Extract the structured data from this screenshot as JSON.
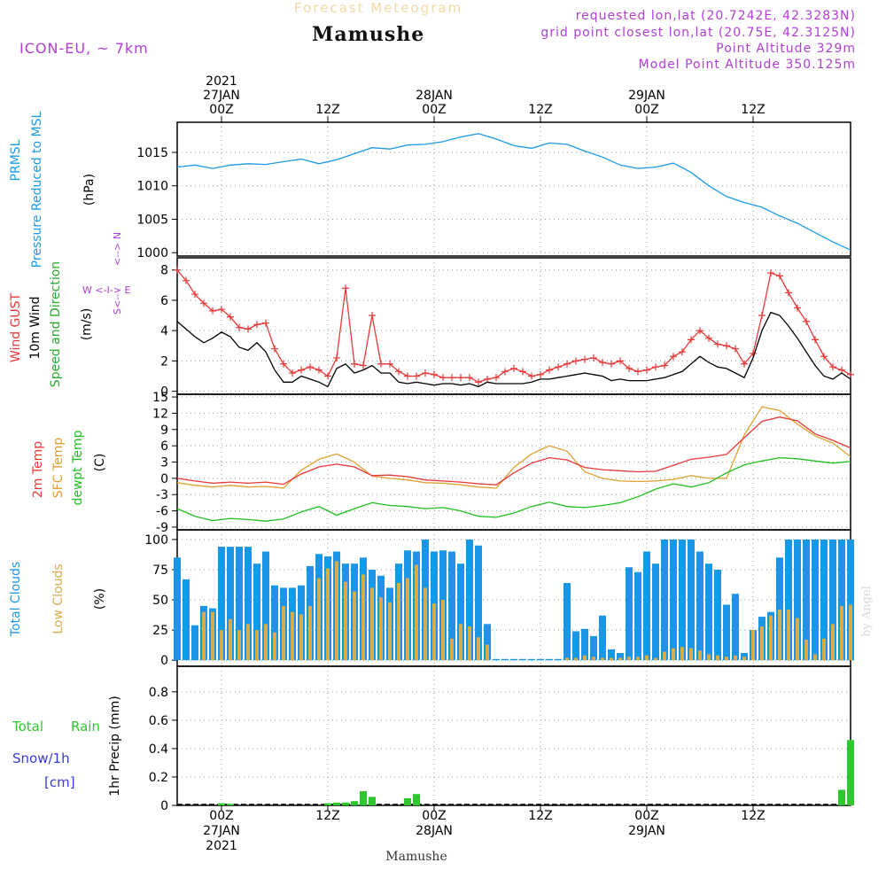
{
  "header": {
    "product": "Forecast Meteogram",
    "location": "Mamushe",
    "model": "ICON-EU, ~ 7km",
    "requested": "requested lon,lat (20.7242E, 42.3283N)",
    "gridpoint": "grid point closest lon,lat (20.75E, 42.3125N)",
    "point_altitude": "Point Altitude 329m",
    "model_altitude": "Model Point Altitude 350.125m",
    "footer_location": "Mamushe",
    "watermark": "by Angel"
  },
  "time_axis": {
    "top_labels": [
      {
        "lines": [
          "2021",
          "27JAN",
          "00Z"
        ]
      },
      {
        "lines": [
          "12Z"
        ]
      },
      {
        "lines": [
          "28JAN",
          "00Z"
        ]
      },
      {
        "lines": [
          "12Z"
        ]
      },
      {
        "lines": [
          "29JAN",
          "00Z"
        ]
      },
      {
        "lines": [
          "12Z"
        ]
      }
    ],
    "bottom_labels": [
      {
        "lines": [
          "00Z",
          "27JAN",
          "2021"
        ]
      },
      {
        "lines": [
          "12Z"
        ]
      },
      {
        "lines": [
          "00Z",
          "28JAN"
        ]
      },
      {
        "lines": [
          "12Z"
        ]
      },
      {
        "lines": [
          "00Z",
          "29JAN"
        ]
      },
      {
        "lines": [
          "12Z"
        ]
      }
    ],
    "tick_hours": [
      0,
      12,
      24,
      36,
      48,
      60
    ],
    "start_hour": -5,
    "end_hour": 71
  },
  "colors": {
    "pressure": "#1a9ae8",
    "gust": "#e83838",
    "wind": "#000000",
    "wind_dir": "#2aa82a",
    "t2m": "#e83838",
    "sfc": "#e0a030",
    "dew": "#1ec01e",
    "total_cloud": "#1a96e6",
    "low_cloud": "#d8aa48",
    "rain": "#2ec82e",
    "snow": "#3a3adc",
    "purple": "#b03ed6"
  },
  "chart_data": [
    {
      "type": "line",
      "panel": "pressure",
      "labels": [
        "PRMSL",
        "Pressure Reduced to MSL"
      ],
      "unit": "(hPa)",
      "ylim": [
        999.5,
        1019.5
      ],
      "yticks": [
        1000,
        1005,
        1010,
        1015
      ],
      "series": [
        {
          "name": "PRMSL",
          "x": [
            -5,
            -3,
            -1,
            1,
            3,
            5,
            7,
            9,
            11,
            13,
            15,
            17,
            19,
            21,
            23,
            25,
            27,
            29,
            31,
            33,
            35,
            37,
            39,
            41,
            43,
            45,
            47,
            49,
            51,
            53,
            55,
            57,
            59,
            61,
            63,
            65,
            67,
            69,
            71
          ],
          "y": [
            1012.8,
            1013.1,
            1012.6,
            1013.1,
            1013.3,
            1013.2,
            1013.6,
            1014.0,
            1013.3,
            1013.9,
            1014.8,
            1015.7,
            1015.5,
            1016.1,
            1016.2,
            1016.6,
            1017.3,
            1017.8,
            1017.0,
            1016.0,
            1015.6,
            1016.4,
            1016.2,
            1015.2,
            1014.3,
            1013.1,
            1012.6,
            1012.8,
            1013.4,
            1012.0,
            1010.0,
            1008.4,
            1007.5,
            1006.8,
            1005.5,
            1004.4,
            1003.0,
            1001.6,
            1000.4
          ]
        }
      ]
    },
    {
      "type": "line",
      "panel": "wind",
      "labels": [
        "Wind GUST",
        "10m Wind",
        "Speed and Direction"
      ],
      "unit": "(m/s)",
      "compass": {
        "n": "N",
        "s": "S",
        "w": "W",
        "e": "E"
      },
      "ylim": [
        -0.2,
        8.8
      ],
      "yticks": [
        0,
        2,
        4,
        6,
        8
      ],
      "series": [
        {
          "name": "Wind GUST",
          "x": [
            -5,
            -4,
            -3,
            -2,
            -1,
            0,
            1,
            2,
            3,
            4,
            5,
            6,
            7,
            8,
            9,
            10,
            11,
            12,
            13,
            14,
            15,
            16,
            17,
            18,
            19,
            20,
            21,
            22,
            23,
            24,
            25,
            26,
            27,
            28,
            29,
            30,
            31,
            32,
            33,
            34,
            35,
            36,
            37,
            38,
            39,
            40,
            41,
            42,
            43,
            44,
            45,
            46,
            47,
            48,
            49,
            50,
            51,
            52,
            53,
            54,
            55,
            56,
            57,
            58,
            59,
            60,
            61,
            62,
            63,
            64,
            65,
            66,
            67,
            68,
            69,
            70,
            71
          ],
          "y": [
            8.0,
            7.3,
            6.4,
            5.8,
            5.3,
            5.4,
            4.9,
            4.2,
            4.1,
            4.4,
            4.5,
            2.8,
            1.8,
            1.2,
            1.4,
            1.6,
            1.4,
            1.0,
            2.2,
            6.8,
            1.8,
            1.7,
            5.0,
            1.8,
            1.8,
            1.3,
            1.0,
            1.0,
            1.2,
            1.1,
            0.9,
            0.9,
            0.9,
            0.9,
            0.6,
            0.8,
            0.9,
            1.3,
            1.5,
            1.3,
            1.0,
            1.1,
            1.4,
            1.6,
            1.8,
            2.0,
            2.1,
            2.2,
            1.9,
            1.8,
            2.0,
            1.5,
            1.3,
            1.4,
            1.6,
            1.7,
            2.3,
            2.6,
            3.4,
            4.0,
            3.5,
            3.1,
            3.0,
            2.8,
            1.8,
            2.5,
            5.0,
            7.8,
            7.6,
            6.5,
            5.5,
            4.6,
            3.4,
            2.3,
            1.6,
            1.4,
            1.1
          ]
        },
        {
          "name": "10m Wind",
          "x": [
            -5,
            -4,
            -3,
            -2,
            -1,
            0,
            1,
            2,
            3,
            4,
            5,
            6,
            7,
            8,
            9,
            10,
            11,
            12,
            13,
            14,
            15,
            16,
            17,
            18,
            19,
            20,
            21,
            22,
            23,
            24,
            25,
            26,
            27,
            28,
            29,
            30,
            31,
            32,
            33,
            34,
            35,
            36,
            37,
            38,
            39,
            40,
            41,
            42,
            43,
            44,
            45,
            46,
            47,
            48,
            49,
            50,
            51,
            52,
            53,
            54,
            55,
            56,
            57,
            58,
            59,
            60,
            61,
            62,
            63,
            64,
            65,
            66,
            67,
            68,
            69,
            70,
            71
          ],
          "y": [
            4.6,
            4.1,
            3.6,
            3.2,
            3.5,
            3.9,
            3.6,
            2.9,
            2.7,
            3.2,
            2.6,
            1.4,
            0.6,
            0.6,
            1.0,
            0.8,
            0.6,
            0.3,
            1.5,
            1.8,
            1.2,
            1.4,
            1.7,
            1.2,
            1.2,
            0.6,
            0.5,
            0.6,
            0.5,
            0.4,
            0.5,
            0.5,
            0.4,
            0.5,
            0.3,
            0.6,
            0.5,
            0.5,
            0.5,
            0.5,
            0.6,
            0.8,
            0.8,
            0.9,
            1.0,
            1.1,
            1.2,
            1.1,
            1.0,
            0.7,
            0.8,
            0.7,
            0.7,
            0.7,
            0.8,
            0.9,
            1.1,
            1.3,
            1.8,
            2.3,
            1.9,
            1.6,
            1.5,
            1.2,
            0.9,
            2.2,
            4.0,
            5.2,
            5.0,
            4.3,
            3.5,
            2.6,
            1.7,
            1.0,
            0.8,
            1.2,
            0.8
          ]
        }
      ]
    },
    {
      "type": "line",
      "panel": "temperature",
      "labels": [
        "2m Temp",
        "SFC Temp",
        "dewpt Temp"
      ],
      "unit": "(C)",
      "ylim": [
        -9.5,
        15.5
      ],
      "yticks": [
        -9,
        -6,
        -3,
        0,
        3,
        6,
        9,
        12,
        15
      ],
      "series": [
        {
          "name": "2m Temp",
          "x": [
            -5,
            -3,
            -1,
            1,
            3,
            5,
            7,
            9,
            11,
            13,
            15,
            17,
            19,
            21,
            23,
            25,
            27,
            29,
            31,
            33,
            35,
            37,
            39,
            41,
            43,
            45,
            47,
            49,
            51,
            53,
            55,
            57,
            59,
            61,
            63,
            65,
            67,
            69,
            71
          ],
          "y": [
            0.0,
            -0.5,
            -0.9,
            -0.7,
            -0.9,
            -0.7,
            -1.1,
            0.8,
            2.1,
            2.6,
            2.1,
            0.5,
            0.6,
            0.3,
            -0.3,
            -0.5,
            -0.7,
            -1.0,
            -1.2,
            1.0,
            2.8,
            3.8,
            3.4,
            2.0,
            1.6,
            1.4,
            1.2,
            1.3,
            2.4,
            3.5,
            3.9,
            4.4,
            7.5,
            10.5,
            11.3,
            10.6,
            8.2,
            7.0,
            5.6
          ]
        },
        {
          "name": "SFC Temp",
          "x": [
            -5,
            -3,
            -1,
            1,
            3,
            5,
            7,
            9,
            11,
            13,
            15,
            17,
            19,
            21,
            23,
            25,
            27,
            29,
            31,
            33,
            35,
            37,
            39,
            41,
            43,
            45,
            47,
            49,
            51,
            53,
            55,
            57,
            59,
            61,
            63,
            65,
            67,
            69,
            71
          ],
          "y": [
            -0.8,
            -1.3,
            -1.6,
            -1.3,
            -1.6,
            -1.5,
            -1.8,
            1.5,
            3.5,
            4.5,
            3.0,
            0.4,
            0.0,
            -0.3,
            -0.8,
            -0.9,
            -1.2,
            -1.6,
            -1.8,
            2.0,
            4.5,
            6.0,
            5.0,
            1.2,
            0.0,
            -0.5,
            -0.6,
            -0.5,
            -0.2,
            0.5,
            0.0,
            0.0,
            8.0,
            13.2,
            12.5,
            10.0,
            7.8,
            6.5,
            4.0
          ]
        },
        {
          "name": "dewpt Temp",
          "x": [
            -5,
            -3,
            -1,
            1,
            3,
            5,
            7,
            9,
            11,
            13,
            15,
            17,
            19,
            21,
            23,
            25,
            27,
            29,
            31,
            33,
            35,
            37,
            39,
            41,
            43,
            45,
            47,
            49,
            51,
            53,
            55,
            57,
            59,
            61,
            63,
            65,
            67,
            69,
            71
          ],
          "y": [
            -5.6,
            -7.0,
            -7.8,
            -7.4,
            -7.6,
            -7.9,
            -7.5,
            -6.2,
            -5.2,
            -6.8,
            -5.6,
            -4.5,
            -5.0,
            -5.2,
            -5.6,
            -5.4,
            -6.0,
            -7.0,
            -7.2,
            -6.4,
            -5.2,
            -4.4,
            -5.2,
            -5.4,
            -5.0,
            -4.5,
            -3.4,
            -2.0,
            -1.0,
            -1.6,
            -0.8,
            1.0,
            2.5,
            3.2,
            3.8,
            3.6,
            3.2,
            2.8,
            3.1
          ]
        }
      ]
    },
    {
      "type": "bar",
      "panel": "clouds",
      "labels": [
        "Total Clouds",
        "Low Clouds"
      ],
      "unit": "(%)",
      "ylim": [
        -5,
        108
      ],
      "yticks": [
        0,
        25,
        50,
        75,
        100
      ],
      "x": [
        -5,
        -4,
        -3,
        -2,
        -1,
        0,
        1,
        2,
        3,
        4,
        5,
        6,
        7,
        8,
        9,
        10,
        11,
        12,
        13,
        14,
        15,
        16,
        17,
        18,
        19,
        20,
        21,
        22,
        23,
        24,
        25,
        26,
        27,
        28,
        29,
        30,
        31,
        32,
        33,
        34,
        35,
        36,
        37,
        38,
        39,
        40,
        41,
        42,
        43,
        44,
        45,
        46,
        47,
        48,
        49,
        50,
        51,
        52,
        53,
        54,
        55,
        56,
        57,
        58,
        59,
        60,
        61,
        62,
        63,
        64,
        65,
        66,
        67,
        68,
        69,
        70,
        71
      ],
      "series": [
        {
          "name": "Total Clouds",
          "values": [
            85,
            67,
            29,
            45,
            43,
            94,
            94,
            94,
            94,
            80,
            90,
            62,
            60,
            60,
            62,
            78,
            88,
            86,
            90,
            80,
            80,
            85,
            75,
            70,
            60,
            80,
            91,
            90,
            100,
            90,
            91,
            90,
            80,
            100,
            95,
            30,
            1,
            1,
            1,
            1,
            1,
            1,
            1,
            1,
            64,
            24,
            26,
            20,
            37,
            9,
            6,
            77,
            73,
            90,
            80,
            100,
            100,
            100,
            100,
            90,
            80,
            75,
            46,
            55,
            6,
            25,
            36,
            40,
            85,
            100,
            100,
            100,
            100,
            100,
            100,
            100,
            100
          ]
        },
        {
          "name": "Low Clouds",
          "values": [
            0,
            0,
            0,
            40,
            40,
            25,
            34,
            25,
            30,
            25,
            30,
            23,
            45,
            40,
            38,
            45,
            68,
            76,
            82,
            65,
            57,
            71,
            60,
            52,
            48,
            64,
            68,
            79,
            60,
            47,
            50,
            18,
            30,
            28,
            19,
            13,
            0,
            0,
            0,
            0,
            0,
            0,
            0,
            0,
            2,
            2,
            4,
            3,
            2,
            2,
            2,
            3,
            3,
            4,
            2,
            7,
            10,
            11,
            10,
            8,
            5,
            4,
            3,
            4,
            3,
            25,
            28,
            37,
            42,
            42,
            35,
            17,
            5,
            18,
            30,
            45,
            46
          ]
        }
      ]
    },
    {
      "type": "bar",
      "panel": "precip",
      "labels": [
        "Total",
        "Rain",
        "Snow/1h",
        "[cm]"
      ],
      "unit": "1hr Precip (mm)",
      "ylim": [
        0,
        0.98
      ],
      "yticks": [
        0,
        0.2,
        0.4,
        0.6,
        0.8
      ],
      "yticklabels": [
        "0",
        "0.2",
        "0.4",
        "0.6",
        "0.8"
      ],
      "series": [
        {
          "name": "Rain",
          "x": [
            0,
            1,
            12,
            13,
            14,
            15,
            16,
            17,
            21,
            22,
            70,
            71
          ],
          "values": [
            0.015,
            0.01,
            0.015,
            0.02,
            0.02,
            0.03,
            0.1,
            0.06,
            0.05,
            0.08,
            0.11,
            0.46
          ]
        }
      ]
    }
  ]
}
